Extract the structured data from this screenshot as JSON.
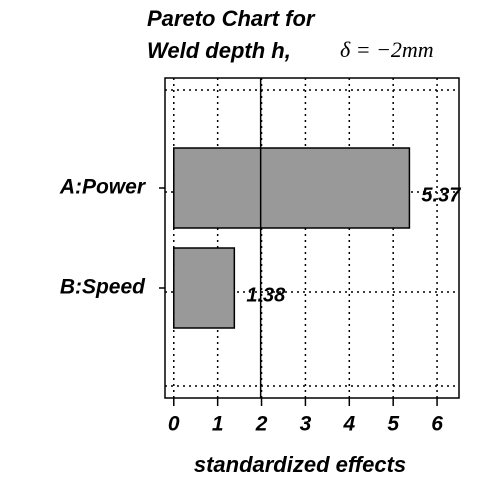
{
  "chart_data": {
    "type": "bar",
    "orientation": "horizontal",
    "title": [
      "Pareto Chart for",
      "Weld depth h,"
    ],
    "title_math": "δ = −2mm",
    "categories": [
      "A:Power",
      "B:Speed"
    ],
    "values": [
      5.37,
      1.38
    ],
    "color": "#999999",
    "xlim": [
      -0.2,
      6.5
    ],
    "xticks": [
      0,
      1,
      2,
      3,
      4,
      5,
      6
    ],
    "xlabel": "standardized effects",
    "reference_line": 1.98,
    "grid": true
  }
}
